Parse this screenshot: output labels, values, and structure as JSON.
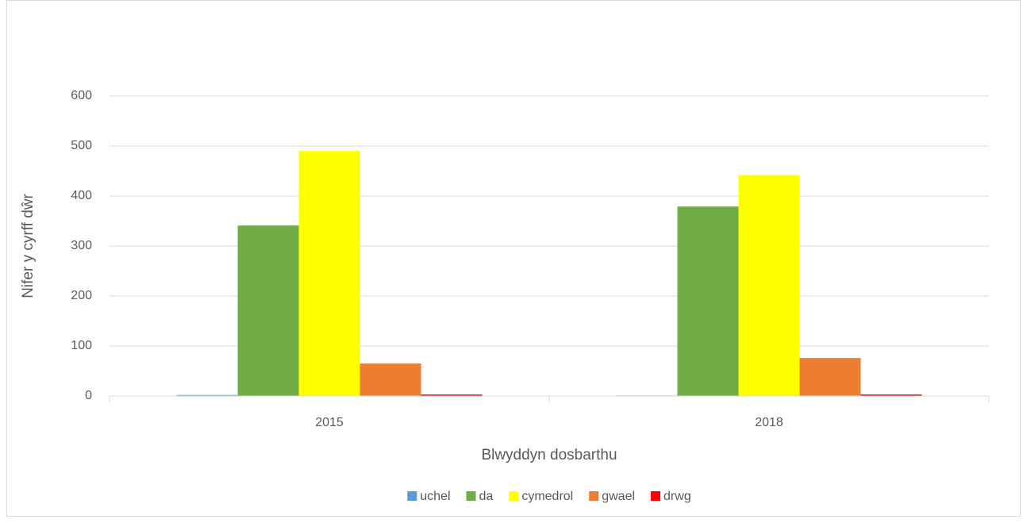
{
  "chart_data": {
    "type": "bar",
    "x_label": "Blwyddyn dosbarthu",
    "y_label": "Nifer y cyrff dŵr",
    "categories": [
      "2015",
      "2018"
    ],
    "series": [
      {
        "name": "uchel",
        "color": "#5b9bd5",
        "values": [
          2,
          1
        ]
      },
      {
        "name": "da",
        "color": "#70ad47",
        "values": [
          341,
          379
        ]
      },
      {
        "name": "cymedrol",
        "color": "#ffff00",
        "values": [
          490,
          442
        ]
      },
      {
        "name": "gwael",
        "color": "#ed7d31",
        "values": [
          65,
          76
        ]
      },
      {
        "name": "drwg",
        "color": "#ff0000",
        "values": [
          3,
          3
        ]
      }
    ],
    "ylim": [
      0,
      600
    ],
    "yticks": [
      0,
      100,
      200,
      300,
      400,
      500,
      600
    ],
    "grid": true,
    "legend": "bottom"
  }
}
